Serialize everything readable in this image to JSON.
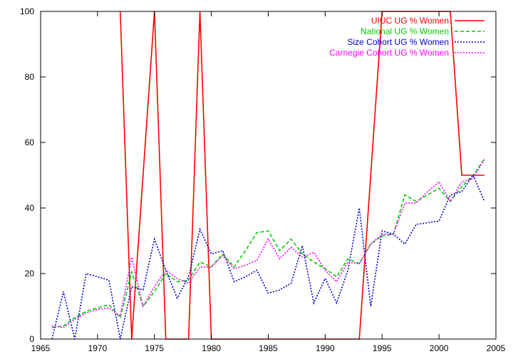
{
  "chart_data": {
    "type": "line",
    "title": "",
    "xlabel": "",
    "ylabel": "",
    "xlim": [
      1965,
      2005
    ],
    "ylim": [
      0,
      100
    ],
    "xticks": [
      1965,
      1970,
      1975,
      1980,
      1985,
      1990,
      1995,
      2000,
      2005
    ],
    "yticks": [
      0,
      20,
      40,
      60,
      80,
      100
    ],
    "grid": false,
    "legend": "top-right",
    "series": [
      {
        "name": "UIUC UG % Women",
        "color": "#ff0000",
        "dash": "solid",
        "x": [
          1972,
          1973,
          1975,
          1976,
          1978,
          1979,
          1980,
          1993,
          1995,
          2001,
          2002,
          2004
        ],
        "y": [
          100,
          0,
          100,
          0,
          0,
          100,
          0,
          0,
          100,
          100,
          50,
          50
        ]
      },
      {
        "name": "National UG % Women",
        "color": "#00cc00",
        "dash": "dashed",
        "x": [
          1966,
          1967,
          1968,
          1969,
          1970,
          1971,
          1972,
          1973,
          1974,
          1975,
          1976,
          1977,
          1978,
          1979,
          1980,
          1981,
          1982,
          1983,
          1984,
          1985,
          1986,
          1987,
          1988,
          1989,
          1990,
          1991,
          1992,
          1993,
          1994,
          1995,
          1996,
          1997,
          1998,
          1999,
          2000,
          2001,
          2002,
          2003,
          2004
        ],
        "y": [
          3.5,
          4,
          6.5,
          8.5,
          9.5,
          10.5,
          6.5,
          20.5,
          10,
          14.5,
          20,
          17.5,
          18,
          23.5,
          22,
          26,
          22,
          27,
          32.5,
          33,
          27,
          30.5,
          26,
          23.5,
          21.5,
          19,
          24.5,
          23,
          29,
          31.5,
          32,
          44,
          42,
          44,
          46,
          42,
          46.5,
          50,
          55
        ]
      },
      {
        "name": "Size Cohort UG % Women",
        "color": "#0000cc",
        "dash": "dotted",
        "x": [
          1966,
          1967,
          1968,
          1969,
          1970,
          1971,
          1972,
          1973,
          1974,
          1975,
          1976,
          1977,
          1978,
          1979,
          1980,
          1981,
          1982,
          1983,
          1984,
          1985,
          1986,
          1987,
          1988,
          1989,
          1990,
          1991,
          1992,
          1993,
          1994,
          1995,
          1996,
          1997,
          1998,
          1999,
          2000,
          2001,
          2002,
          2003,
          2004
        ],
        "y": [
          0,
          14.5,
          0,
          20,
          19,
          18,
          0,
          16,
          15,
          30.5,
          21,
          12.5,
          19,
          33.5,
          26,
          27,
          17.5,
          19,
          21,
          14,
          15,
          17,
          28.5,
          11,
          18.5,
          11,
          21,
          40,
          10,
          33,
          32,
          29,
          35,
          35.5,
          36,
          44,
          45,
          50,
          42
        ]
      },
      {
        "name": "Carnegie Cohort UG % Women",
        "color": "#ff00ff",
        "dash": "dotted",
        "x": [
          1966,
          1967,
          1968,
          1969,
          1970,
          1971,
          1972,
          1973,
          1974,
          1975,
          1976,
          1977,
          1978,
          1979,
          1980,
          1981,
          1982,
          1983,
          1984,
          1985,
          1986,
          1987,
          1988,
          1989,
          1990,
          1991,
          1992,
          1993,
          1994,
          1995,
          1996,
          1997,
          1998,
          1999,
          2000,
          2001,
          2002,
          2003,
          2004
        ],
        "y": [
          4,
          3.5,
          6,
          8,
          9,
          9.5,
          7,
          25,
          10,
          16,
          21,
          18.5,
          17,
          22,
          22,
          25.5,
          21.5,
          22.5,
          24,
          30.5,
          24.5,
          28,
          25,
          26.5,
          21,
          17.5,
          23.5,
          23,
          29,
          32,
          32,
          41.5,
          41.5,
          45,
          48,
          42,
          48,
          49,
          55
        ]
      }
    ]
  }
}
